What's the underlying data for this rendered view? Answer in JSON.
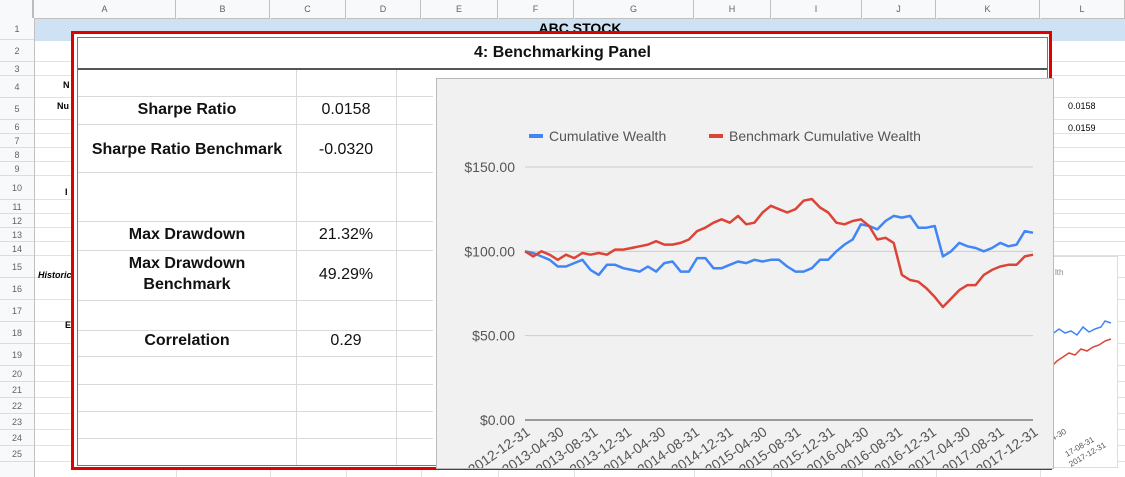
{
  "sheet": {
    "columns": [
      "A",
      "B",
      "C",
      "D",
      "E",
      "F",
      "G",
      "H",
      "I",
      "J",
      "K",
      "L"
    ],
    "rows": [
      "1",
      "2",
      "3",
      "4",
      "5",
      "6",
      "7",
      "8",
      "9",
      "10",
      "11",
      "12",
      "13",
      "14",
      "15",
      "16",
      "17",
      "18",
      "19",
      "20",
      "21",
      "22",
      "23",
      "24",
      "25"
    ],
    "title": "ABC STOCK",
    "bg_labels": {
      "n4": "N",
      "nu5": "Nu",
      "i10": "I",
      "historic": "Historic",
      "e17": "E"
    },
    "right_values": [
      "0.0158",
      "0.0159"
    ],
    "bg_chart": {
      "legend_fragment": "lth",
      "x_labels": [
        "4-30",
        "17-08-31",
        "2017-12-31"
      ]
    }
  },
  "panel": {
    "title": "4: Benchmarking Panel",
    "metrics": [
      {
        "label": "Sharpe Ratio",
        "value": "0.0158"
      },
      {
        "label": "Sharpe Ratio Benchmark",
        "value": "-0.0320"
      },
      {
        "label": "Max Drawdown",
        "value": "21.32%"
      },
      {
        "label": "Max Drawdown Benchmark",
        "value": "49.29%"
      },
      {
        "label": "Correlation",
        "value": "0.29"
      }
    ]
  },
  "chart_data": {
    "type": "line",
    "legend": [
      "Cumulative Wealth",
      "Benchmark Cumulative Wealth"
    ],
    "legend_position": "top",
    "colors": {
      "series1": "#4285f4",
      "series2": "#db4437"
    },
    "y_ticks": [
      "$150.00",
      "$100.00",
      "$50.00",
      "$0.00"
    ],
    "ylim": [
      0,
      150
    ],
    "x_tick_labels": [
      "2012-12-31",
      "2013-04-30",
      "2013-08-31",
      "2013-12-31",
      "2014-04-30",
      "2014-08-31",
      "2014-12-31",
      "2015-04-30",
      "2015-08-31",
      "2015-12-31",
      "2016-04-30",
      "2016-08-31",
      "2016-12-31",
      "2017-04-30",
      "2017-08-31",
      "2017-12-31"
    ],
    "series": [
      {
        "name": "Cumulative Wealth",
        "values": [
          100,
          99,
          97,
          95,
          91,
          91,
          93,
          95,
          89,
          86,
          92,
          92,
          90,
          89,
          88,
          91,
          88,
          93,
          94,
          88,
          88,
          96,
          96,
          90,
          90,
          92,
          94,
          93,
          95,
          94,
          95,
          95,
          91,
          88,
          88,
          90,
          95,
          95,
          100,
          104,
          107,
          116,
          115,
          113,
          118,
          121,
          120,
          121,
          114,
          114,
          115,
          97,
          100,
          105,
          103,
          102,
          100,
          102,
          105,
          103,
          104,
          112,
          111
        ]
      },
      {
        "name": "Benchmark Cumulative Wealth",
        "values": [
          100,
          97,
          100,
          98,
          95,
          98,
          96,
          99,
          98,
          99,
          98,
          101,
          101,
          102,
          103,
          104,
          106,
          104,
          104,
          105,
          107,
          112,
          114,
          117,
          119,
          117,
          121,
          116,
          117,
          123,
          127,
          125,
          123,
          125,
          130,
          131,
          126,
          123,
          117,
          116,
          118,
          119,
          115,
          107,
          108,
          105,
          86,
          83,
          82,
          78,
          73,
          67,
          72,
          77,
          80,
          80,
          86,
          89,
          91,
          92,
          92,
          97,
          98
        ]
      }
    ]
  }
}
